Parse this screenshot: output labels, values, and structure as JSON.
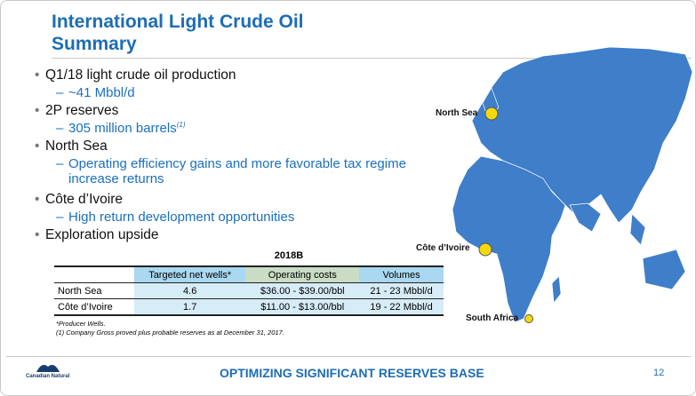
{
  "header": {
    "title_lines": [
      "International Light Crude Oil",
      "Summary"
    ]
  },
  "bullets": [
    {
      "text": "Q1/18 light crude oil production",
      "subs": [
        {
          "text": "~41 Mbbl/d"
        }
      ]
    },
    {
      "text": "2P reserves",
      "subs": [
        {
          "text": "305 million barrels",
          "note": "(1)"
        }
      ]
    },
    {
      "text": "North Sea",
      "subs": [
        {
          "text": "Operating efficiency gains and more favorable tax regime increase returns"
        }
      ]
    },
    {
      "text": "Côte d’Ivoire",
      "subs": [
        {
          "text": "High return development opportunities"
        }
      ]
    },
    {
      "text": "Exploration upside",
      "subs": []
    }
  ],
  "table": {
    "group_header": "2018B",
    "columns": [
      "",
      "Targeted net wells*",
      "Operating costs",
      "Volumes"
    ],
    "rows": [
      [
        "North Sea",
        "4.6",
        "$36.00 - $39.00/bbl",
        "21 - 23 Mbbl/d"
      ],
      [
        "Côte d’Ivoire",
        "1.7",
        "$11.00 - $13.00/bbl",
        "19 - 22 Mbbl/d"
      ]
    ]
  },
  "footnotes": [
    "*Producer Wells.",
    "(1) Company Gross proved plus probable reserves as at December 31, 2017."
  ],
  "map": {
    "labels": [
      "North Sea",
      "Côte d’Ivoire",
      "South Africa"
    ]
  },
  "footer": {
    "logo": "Canadian Natural",
    "tagline": "OPTIMIZING SIGNIFICANT RESERVES BASE",
    "page": "12"
  }
}
